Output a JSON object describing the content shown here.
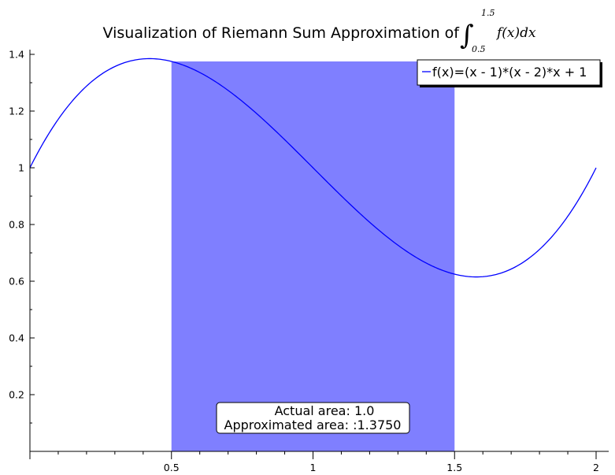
{
  "chart_data": {
    "type": "line",
    "title": "Visualization of Riemann Sum Approximation of",
    "title_math": {
      "integral_sign": "∫",
      "upper": "1.5",
      "lower": "0.5",
      "integrand": "f(x)dx"
    },
    "xlabel": "",
    "ylabel": "",
    "xlim": [
      0,
      2
    ],
    "ylim": [
      0,
      1.4
    ],
    "x_ticks": [
      0.5,
      1,
      1.5,
      2
    ],
    "x_tick_labels": [
      "0.5",
      "1",
      "1.5",
      "2"
    ],
    "y_ticks": [
      0.2,
      0.4,
      0.6,
      0.8,
      1,
      1.2,
      1.4
    ],
    "y_tick_labels": [
      "0.2",
      "0.4",
      "0.6",
      "0.8",
      "1",
      "1.2",
      "1.4"
    ],
    "grid": false,
    "legend_position": "top-right",
    "series": [
      {
        "name": "f(x)=(x - 1)*(x - 2)*x + 1",
        "color": "#0000ff",
        "x": [
          0,
          0.1,
          0.2,
          0.3,
          0.4,
          0.5,
          0.6,
          0.7,
          0.8,
          0.9,
          1.0,
          1.1,
          1.2,
          1.3,
          1.4,
          1.5,
          1.6,
          1.7,
          1.8,
          1.9,
          2.0
        ],
        "y": [
          1.0,
          1.171,
          1.288,
          1.357,
          1.384,
          1.375,
          1.336,
          1.273,
          1.192,
          1.099,
          1.0,
          0.901,
          0.808,
          0.727,
          0.664,
          0.625,
          0.616,
          0.643,
          0.712,
          0.829,
          1.0
        ]
      }
    ],
    "rectangles": [
      {
        "x0": 0.5,
        "x1": 1.5,
        "height": 1.375,
        "color": "#7f7fff"
      }
    ],
    "annotation": {
      "lines": [
        "Actual area: 1.0",
        "Approximated area: :1.3750"
      ],
      "x": 1.0,
      "y": 0.11
    }
  }
}
